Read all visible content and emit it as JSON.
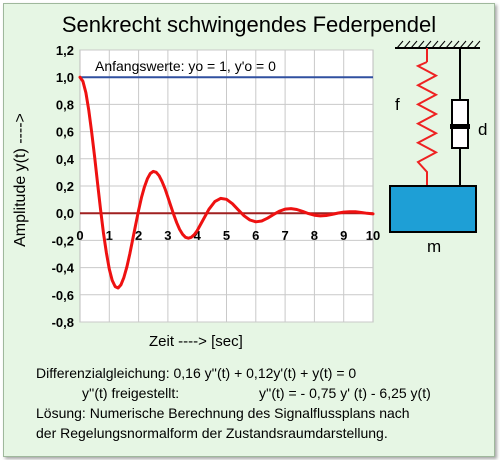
{
  "title": "Senkrecht schwingendes Federpendel",
  "colors": {
    "panel_background": "#e6f6e4",
    "plot_background": "#ffffff",
    "response_curve": "#ee1111",
    "initial_value_line": "#3050a0",
    "zero_line": "#a02020",
    "mass_fill": "#1e9fd6",
    "spring": "#ee2222"
  },
  "chart_data": {
    "type": "line",
    "title": "Senkrecht schwingendes Federpendel",
    "xlabel": "Zeit  ---->  [sec]",
    "ylabel": "Amplitude y(t)  ---->",
    "xlim": [
      0,
      10
    ],
    "ylim": [
      -0.8,
      1.2
    ],
    "x_ticks": [
      "0",
      "1",
      "2",
      "3",
      "4",
      "5",
      "6",
      "7",
      "8",
      "9",
      "10"
    ],
    "y_ticks": [
      "1,2",
      "1,0",
      "0,8",
      "0,6",
      "0,4",
      "0,2",
      "0,0",
      "-0,2",
      "-0,4",
      "-0,6",
      "-0,8"
    ],
    "grid": true,
    "annotation": "Anfangswerte:  yo = 1,  y'o = 0",
    "initial_value_line": 1.0,
    "series": [
      {
        "x": [
          0,
          0.1,
          0.2,
          0.3,
          0.4,
          0.5,
          0.6,
          0.7,
          0.8,
          0.9,
          1.0,
          1.1,
          1.2,
          1.3,
          1.4,
          1.5,
          1.6,
          1.7,
          1.8,
          1.9,
          2.0,
          2.1,
          2.2,
          2.3,
          2.4,
          2.5,
          2.6,
          2.7,
          2.8,
          2.9,
          3.0,
          3.1,
          3.2,
          3.3,
          3.4,
          3.5,
          3.6,
          3.7,
          3.8,
          3.9,
          4.0,
          4.2,
          4.4,
          4.6,
          4.8,
          5.0,
          5.2,
          5.4,
          5.6,
          5.8,
          6.0,
          6.2,
          6.4,
          6.6,
          6.8,
          7.0,
          7.2,
          7.4,
          7.6,
          7.8,
          8.0,
          8.2,
          8.4,
          8.6,
          8.8,
          9.0,
          9.2,
          9.4,
          9.6,
          9.8,
          10.0
        ],
        "y": [
          1.0,
          0.97,
          0.885,
          0.756,
          0.594,
          0.41,
          0.218,
          0.03,
          -0.143,
          -0.292,
          -0.411,
          -0.494,
          -0.54,
          -0.55,
          -0.526,
          -0.472,
          -0.394,
          -0.299,
          -0.193,
          -0.084,
          0.021,
          0.116,
          0.195,
          0.254,
          0.292,
          0.307,
          0.301,
          0.276,
          0.234,
          0.18,
          0.118,
          0.053,
          -0.012,
          -0.07,
          -0.119,
          -0.155,
          -0.177,
          -0.184,
          -0.177,
          -0.157,
          -0.128,
          -0.049,
          0.029,
          0.085,
          0.109,
          0.102,
          0.07,
          0.025,
          -0.019,
          -0.05,
          -0.063,
          -0.057,
          -0.037,
          -0.01,
          0.014,
          0.03,
          0.034,
          0.027,
          0.013,
          -0.003,
          -0.015,
          -0.02,
          -0.017,
          -0.009,
          0.001,
          0.008,
          0.011,
          0.01,
          0.005,
          -0.001,
          -0.005
        ]
      }
    ]
  },
  "diagram": {
    "spring_label": "f",
    "damper_label": "d",
    "mass_label": "m"
  },
  "equations": {
    "line1": "Differenzialgleichung:  0,16 y''(t) + 0,12y'(t) + y(t) = 0",
    "line2_left": "y''(t) freigestellt:",
    "line2_right": "y''(t) = - 0,75 y' (t)  - 6,25 y(t)",
    "line3": "Lösung: Numerische Berechnung des Signalflussplans nach",
    "line4": "der Regelungsnormalform der Zustandsraumdarstellung."
  }
}
